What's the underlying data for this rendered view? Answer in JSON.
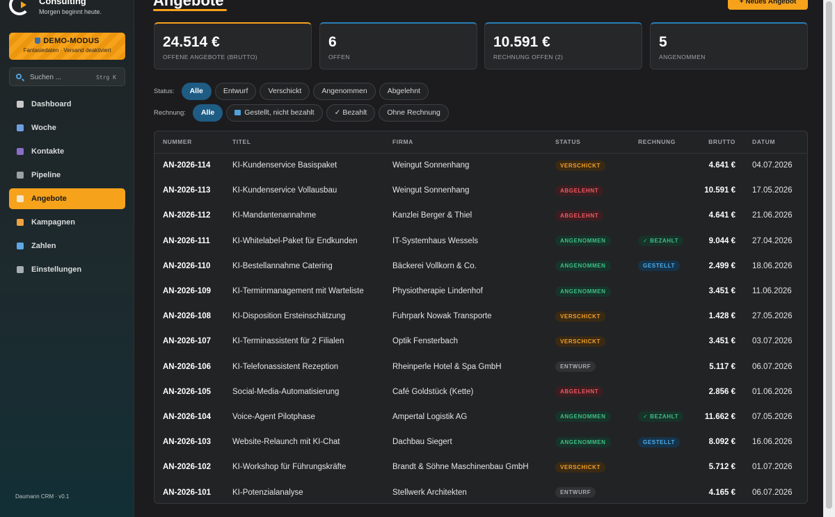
{
  "brand": {
    "name": "Consulting",
    "tagline": "Morgen beginnt heute."
  },
  "demo": {
    "title": "DEMO-MODUS",
    "subtitle": "Fantasiedaten · Versand deaktiviert"
  },
  "search": {
    "placeholder": "Suchen ...",
    "shortcut": "Strg K"
  },
  "nav": {
    "items": [
      {
        "label": "Dashboard",
        "icon": "dashboard-icon",
        "color": "#c9c9c9"
      },
      {
        "label": "Woche",
        "icon": "calendar-icon",
        "color": "#6d9fe0"
      },
      {
        "label": "Kontakte",
        "icon": "people-icon",
        "color": "#8a6fc9"
      },
      {
        "label": "Pipeline",
        "icon": "pipeline-icon",
        "color": "#9aa0a4"
      },
      {
        "label": "Angebote",
        "icon": "document-icon",
        "color": "#f3e6c9"
      },
      {
        "label": "Kampagnen",
        "icon": "megaphone-icon",
        "color": "#f0a340"
      },
      {
        "label": "Zahlen",
        "icon": "bar-chart-icon",
        "color": "#5ea6e6"
      },
      {
        "label": "Einstellungen",
        "icon": "gear-icon",
        "color": "#a9aeb1"
      }
    ],
    "active": "Angebote"
  },
  "footer": {
    "version": "Daumann CRM · v0.1"
  },
  "page": {
    "title": "Angebote",
    "new_button": "+ Neues Angebot"
  },
  "kpis": [
    {
      "value": "24.514 €",
      "label": "OFFENE ANGEBOTE (BRUTTO)",
      "accent": "#f7a21b"
    },
    {
      "value": "6",
      "label": "OFFEN",
      "accent": "#2a7fb8"
    },
    {
      "value": "10.591 €",
      "label": "RECHNUNG OFFEN (2)",
      "accent": "#2a7fb8"
    },
    {
      "value": "5",
      "label": "ANGENOMMEN",
      "accent": "#2a7fb8"
    }
  ],
  "filters": {
    "status_label": "Status:",
    "status": [
      "Alle",
      "Entwurf",
      "Verschickt",
      "Angenommen",
      "Abgelehnt"
    ],
    "status_active": "Alle",
    "invoice_label": "Rechnung:",
    "invoice": [
      "Alle",
      "Gestellt, nicht bezahlt",
      "✓ Bezahlt",
      "Ohne Rechnung"
    ],
    "invoice_active": "Alle"
  },
  "table": {
    "columns": [
      "NUMMER",
      "TITEL",
      "FIRMA",
      "STATUS",
      "RECHNUNG",
      "BRUTTO",
      "DATUM"
    ],
    "rows": [
      {
        "nummer": "AN-2026-114",
        "titel": "KI-Kundenservice Basispaket",
        "firma": "Weingut Sonnenhang",
        "status": "VERSCHICKT",
        "rechnung": "",
        "brutto": "4.641 €",
        "datum": "04.07.2026"
      },
      {
        "nummer": "AN-2026-113",
        "titel": "KI-Kundenservice Vollausbau",
        "firma": "Weingut Sonnenhang",
        "status": "ABGELEHNT",
        "rechnung": "",
        "brutto": "10.591 €",
        "datum": "17.05.2026"
      },
      {
        "nummer": "AN-2026-112",
        "titel": "KI-Mandantenannahme",
        "firma": "Kanzlei Berger & Thiel",
        "status": "ABGELEHNT",
        "rechnung": "",
        "brutto": "4.641 €",
        "datum": "21.06.2026"
      },
      {
        "nummer": "AN-2026-111",
        "titel": "KI-Whitelabel-Paket für Endkunden",
        "firma": "IT-Systemhaus Wessels",
        "status": "ANGENOMMEN",
        "rechnung": "✓ BEZAHLT",
        "brutto": "9.044 €",
        "datum": "27.04.2026"
      },
      {
        "nummer": "AN-2026-110",
        "titel": "KI-Bestellannahme Catering",
        "firma": "Bäckerei Vollkorn & Co.",
        "status": "ANGENOMMEN",
        "rechnung": "GESTELLT",
        "brutto": "2.499 €",
        "datum": "18.06.2026"
      },
      {
        "nummer": "AN-2026-109",
        "titel": "KI-Terminmanagement mit Warteliste",
        "firma": "Physiotherapie Lindenhof",
        "status": "ANGENOMMEN",
        "rechnung": "",
        "brutto": "3.451 €",
        "datum": "11.06.2026"
      },
      {
        "nummer": "AN-2026-108",
        "titel": "KI-Disposition Ersteinschätzung",
        "firma": "Fuhrpark Nowak Transporte",
        "status": "VERSCHICKT",
        "rechnung": "",
        "brutto": "1.428 €",
        "datum": "27.05.2026"
      },
      {
        "nummer": "AN-2026-107",
        "titel": "KI-Terminassistent für 2 Filialen",
        "firma": "Optik Fensterbach",
        "status": "VERSCHICKT",
        "rechnung": "",
        "brutto": "3.451 €",
        "datum": "03.07.2026"
      },
      {
        "nummer": "AN-2026-106",
        "titel": "KI-Telefonassistent Rezeption",
        "firma": "Rheinperle Hotel & Spa GmbH",
        "status": "ENTWURF",
        "rechnung": "",
        "brutto": "5.117 €",
        "datum": "06.07.2026"
      },
      {
        "nummer": "AN-2026-105",
        "titel": "Social-Media-Automatisierung",
        "firma": "Café Goldstück (Kette)",
        "status": "ABGELEHNT",
        "rechnung": "",
        "brutto": "2.856 €",
        "datum": "01.06.2026"
      },
      {
        "nummer": "AN-2026-104",
        "titel": "Voice-Agent Pilotphase",
        "firma": "Ampertal Logistik AG",
        "status": "ANGENOMMEN",
        "rechnung": "✓ BEZAHLT",
        "brutto": "11.662 €",
        "datum": "07.05.2026"
      },
      {
        "nummer": "AN-2026-103",
        "titel": "Website-Relaunch mit KI-Chat",
        "firma": "Dachbau Siegert",
        "status": "ANGENOMMEN",
        "rechnung": "GESTELLT",
        "brutto": "8.092 €",
        "datum": "16.06.2026"
      },
      {
        "nummer": "AN-2026-102",
        "titel": "KI-Workshop für Führungskräfte",
        "firma": "Brandt & Söhne Maschinenbau GmbH",
        "status": "VERSCHICKT",
        "rechnung": "",
        "brutto": "5.712 €",
        "datum": "01.07.2026"
      },
      {
        "nummer": "AN-2026-101",
        "titel": "KI-Potenzialanalyse",
        "firma": "Stellwerk Architekten",
        "status": "ENTWURF",
        "rechnung": "",
        "brutto": "4.165 €",
        "datum": "06.07.2026"
      }
    ]
  }
}
